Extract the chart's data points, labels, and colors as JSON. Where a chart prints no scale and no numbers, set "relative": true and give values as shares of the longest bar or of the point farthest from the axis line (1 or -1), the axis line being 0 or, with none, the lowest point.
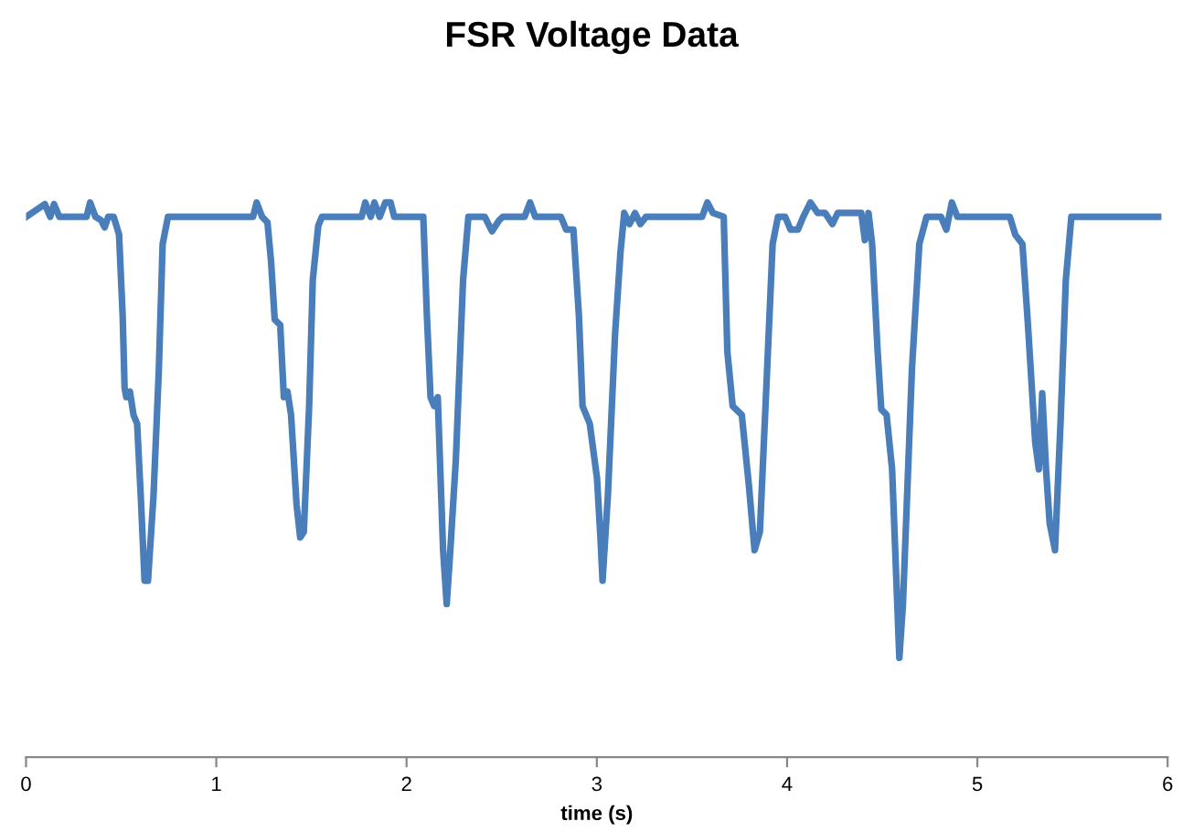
{
  "chart_data": {
    "type": "line",
    "title": "FSR Voltage Data",
    "xlabel": "time (s)",
    "relative": true,
    "xlim": [
      0,
      6
    ],
    "xticks": [
      0,
      1,
      2,
      3,
      4,
      5,
      6
    ],
    "grid": false,
    "marker": "none",
    "line_style": "solid",
    "series": [
      {
        "color": "#4a7ebb",
        "x": [
          0,
          0.099,
          0.127,
          0.147,
          0.175,
          0.318,
          0.337,
          0.365,
          0.394,
          0.413,
          0.432,
          0.461,
          0.489,
          0.508,
          0.518,
          0.527,
          0.546,
          0.565,
          0.584,
          0.603,
          0.623,
          0.641,
          0.67,
          0.698,
          0.718,
          0.746,
          1.193,
          1.212,
          1.241,
          1.269,
          1.288,
          1.307,
          1.336,
          1.355,
          1.374,
          1.393,
          1.422,
          1.441,
          1.46,
          1.488,
          1.507,
          1.536,
          1.555,
          1.764,
          1.783,
          1.812,
          1.831,
          1.859,
          1.888,
          1.916,
          1.935,
          2.088,
          2.107,
          2.126,
          2.145,
          2.164,
          2.192,
          2.211,
          2.23,
          2.259,
          2.297,
          2.325,
          2.411,
          2.449,
          2.487,
          2.506,
          2.62,
          2.649,
          2.677,
          2.811,
          2.839,
          2.877,
          2.906,
          2.925,
          2.963,
          3.001,
          3.02,
          3.03,
          3.058,
          3.096,
          3.124,
          3.144,
          3.172,
          3.201,
          3.229,
          3.258,
          3.553,
          3.581,
          3.61,
          3.667,
          3.686,
          3.714,
          3.762,
          3.8,
          3.829,
          3.857,
          3.895,
          3.924,
          3.952,
          3.99,
          4.018,
          4.057,
          4.085,
          4.123,
          4.161,
          4.2,
          4.238,
          4.266,
          4.39,
          4.409,
          4.428,
          4.447,
          4.476,
          4.495,
          4.523,
          4.552,
          4.59,
          4.609,
          4.656,
          4.695,
          4.733,
          4.809,
          4.837,
          4.866,
          4.895,
          5.171,
          5.199,
          5.237,
          5.266,
          5.304,
          5.323,
          5.341,
          5.361,
          5.38,
          5.408,
          5.437,
          5.465,
          5.494,
          5.95
        ],
        "values": [
          0.974,
          0.997,
          0.974,
          0.997,
          0.974,
          0.974,
          1.0,
          0.974,
          0.968,
          0.955,
          0.974,
          0.974,
          0.942,
          0.795,
          0.666,
          0.649,
          0.659,
          0.617,
          0.601,
          0.471,
          0.318,
          0.318,
          0.471,
          0.698,
          0.925,
          0.974,
          0.974,
          1.0,
          0.974,
          0.964,
          0.893,
          0.789,
          0.779,
          0.649,
          0.659,
          0.617,
          0.455,
          0.396,
          0.406,
          0.633,
          0.86,
          0.958,
          0.974,
          0.974,
          1.0,
          0.974,
          1.0,
          0.974,
          1.0,
          1.0,
          0.974,
          0.974,
          0.795,
          0.649,
          0.633,
          0.649,
          0.373,
          0.276,
          0.373,
          0.536,
          0.86,
          0.974,
          0.974,
          0.948,
          0.968,
          0.974,
          0.974,
          1.0,
          0.974,
          0.974,
          0.951,
          0.951,
          0.795,
          0.633,
          0.601,
          0.503,
          0.39,
          0.318,
          0.471,
          0.763,
          0.909,
          0.981,
          0.961,
          0.981,
          0.961,
          0.974,
          0.974,
          1.0,
          0.981,
          0.974,
          0.731,
          0.633,
          0.617,
          0.487,
          0.373,
          0.406,
          0.698,
          0.925,
          0.974,
          0.974,
          0.951,
          0.951,
          0.974,
          1.0,
          0.981,
          0.981,
          0.961,
          0.981,
          0.981,
          0.932,
          0.981,
          0.925,
          0.731,
          0.627,
          0.617,
          0.519,
          0.179,
          0.276,
          0.698,
          0.925,
          0.974,
          0.974,
          0.951,
          1.0,
          0.974,
          0.974,
          0.942,
          0.925,
          0.779,
          0.568,
          0.519,
          0.656,
          0.519,
          0.422,
          0.373,
          0.601,
          0.86,
          0.974,
          0.974
        ]
      }
    ]
  }
}
